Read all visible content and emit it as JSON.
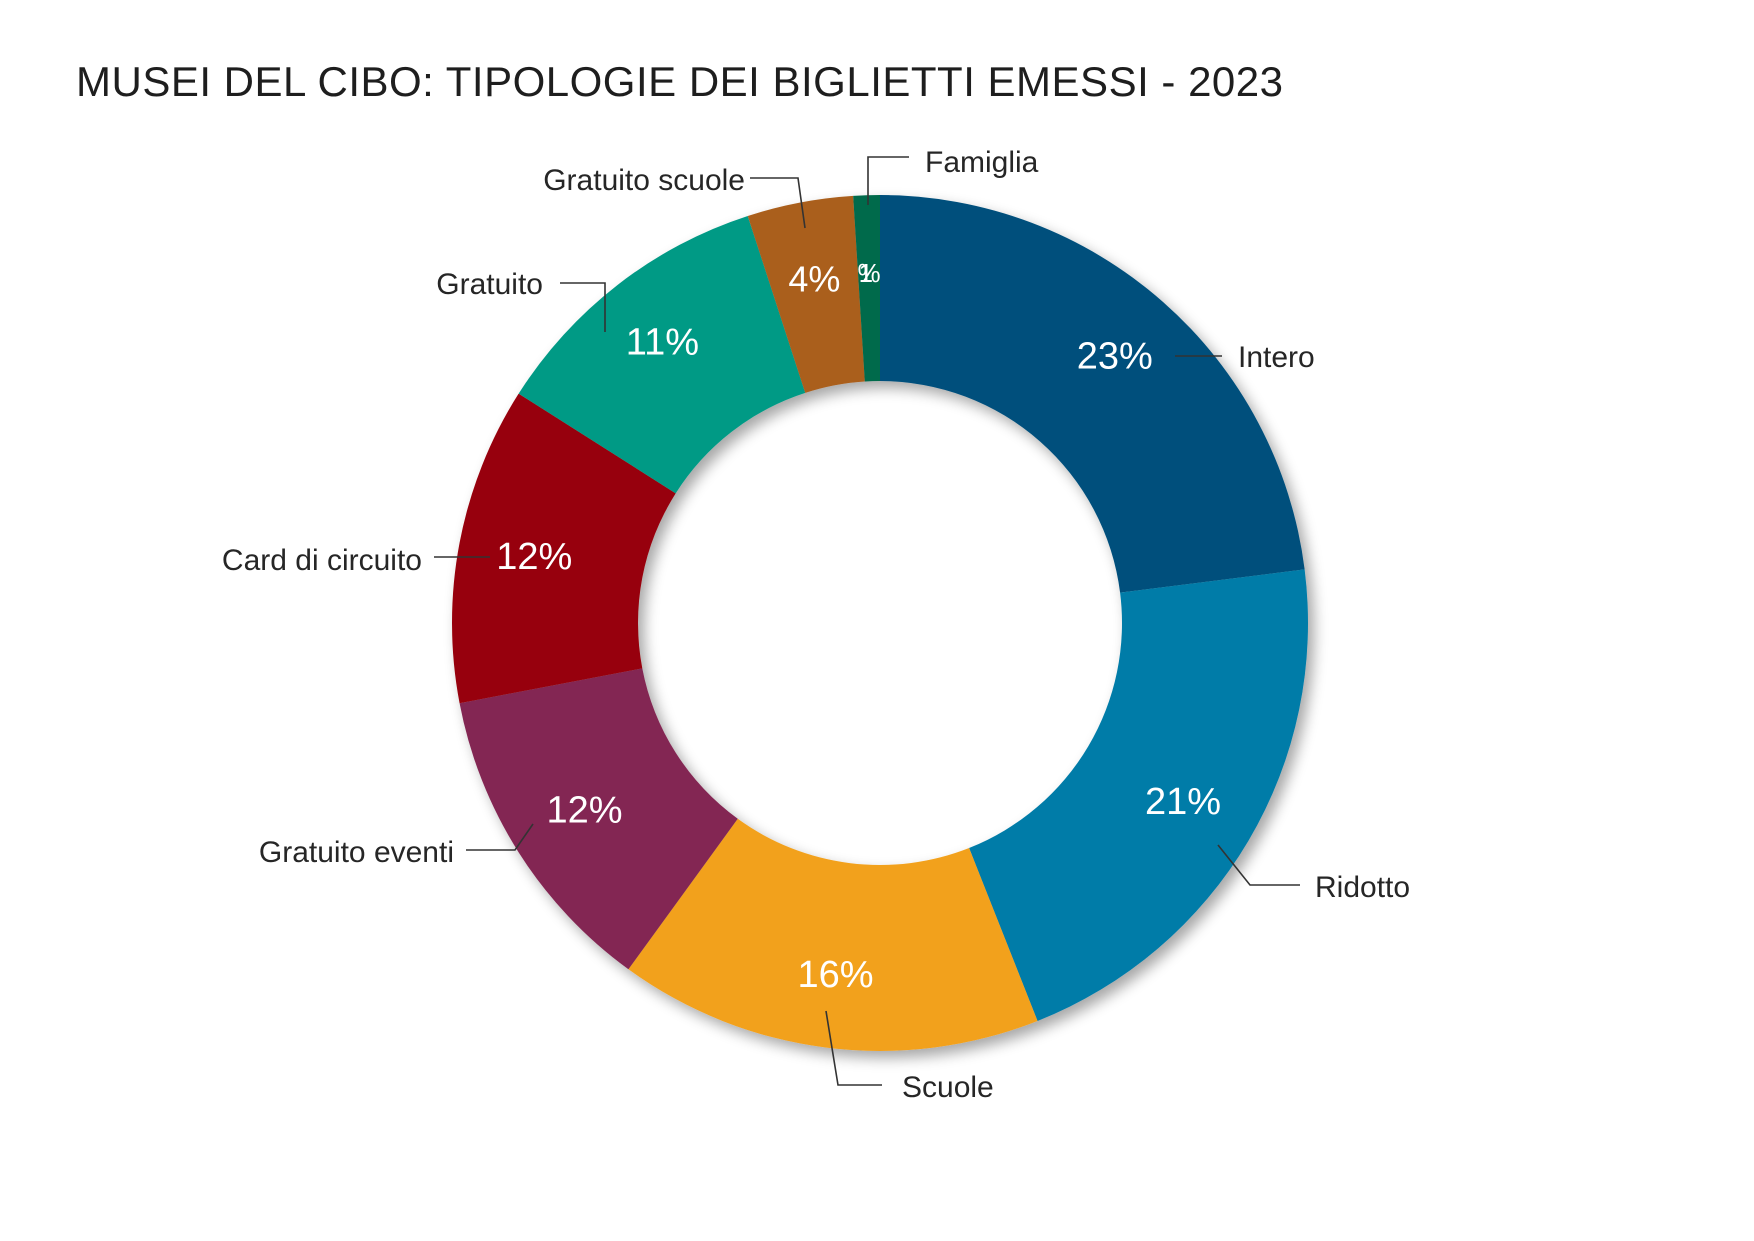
{
  "chart_data": {
    "type": "pie",
    "donut": true,
    "title": "MUSEI DEL CIBO: TIPOLOGIE DEI BIGLIETTI EMESSI - 2023",
    "unit": "%",
    "slices": [
      {
        "label": "Intero",
        "value": 23,
        "display": "23%",
        "color": "#04507c"
      },
      {
        "label": "Ridotto",
        "value": 21,
        "display": "21%",
        "color": "#007ca8"
      },
      {
        "label": "Scuole",
        "value": 16,
        "display": "16%",
        "color": "#f2a11f"
      },
      {
        "label": "Gratuito eventi",
        "value": 12,
        "display": "12%",
        "color": "#832853"
      },
      {
        "label": "Card di circuito",
        "value": 12,
        "display": "12%",
        "color": "#970009"
      },
      {
        "label": "Gratuito",
        "value": 11,
        "display": "11%",
        "color": "#039a85"
      },
      {
        "label": "Gratuito scuole",
        "value": 4,
        "display": "4%",
        "color": "#aa5f1e"
      },
      {
        "label": "Famiglia",
        "value": 1,
        "display": "1%",
        "color": "#056a4b"
      }
    ],
    "legend": "none"
  }
}
